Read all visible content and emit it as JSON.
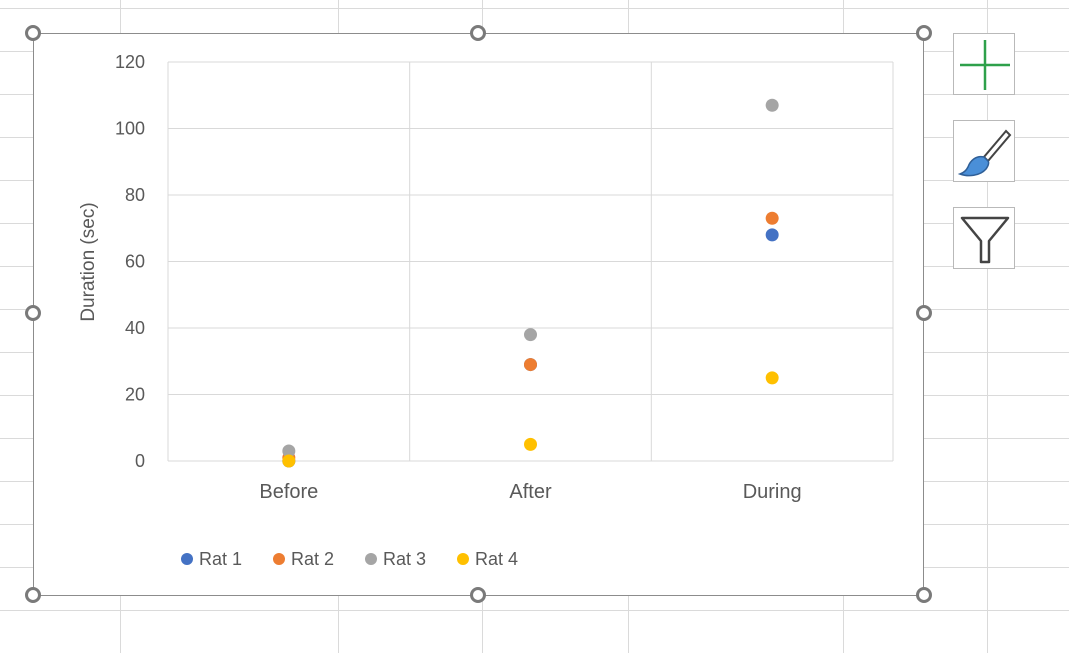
{
  "chart_data": {
    "type": "scatter",
    "title": "",
    "xlabel": "",
    "ylabel": "Duration (sec)",
    "categories": [
      "Before",
      "After",
      "During"
    ],
    "ylim": [
      0,
      120
    ],
    "yticks": [
      0,
      20,
      40,
      60,
      80,
      100,
      120
    ],
    "grid": true,
    "legend_position": "bottom-left",
    "series": [
      {
        "name": "Rat 1",
        "color": "#4472c4",
        "values": [
          0,
          29,
          68
        ]
      },
      {
        "name": "Rat 2",
        "color": "#ed7d31",
        "values": [
          1,
          29,
          73
        ]
      },
      {
        "name": "Rat 3",
        "color": "#a5a5a5",
        "values": [
          3,
          38,
          107
        ]
      },
      {
        "name": "Rat 4",
        "color": "#ffc000",
        "values": [
          0,
          5,
          25
        ]
      }
    ]
  },
  "side_buttons": [
    {
      "icon": "plus-icon",
      "color": "#2ea04a"
    },
    {
      "icon": "brush-icon",
      "color": "#4a8fd8"
    },
    {
      "icon": "filter-icon",
      "color": "#444444"
    }
  ]
}
